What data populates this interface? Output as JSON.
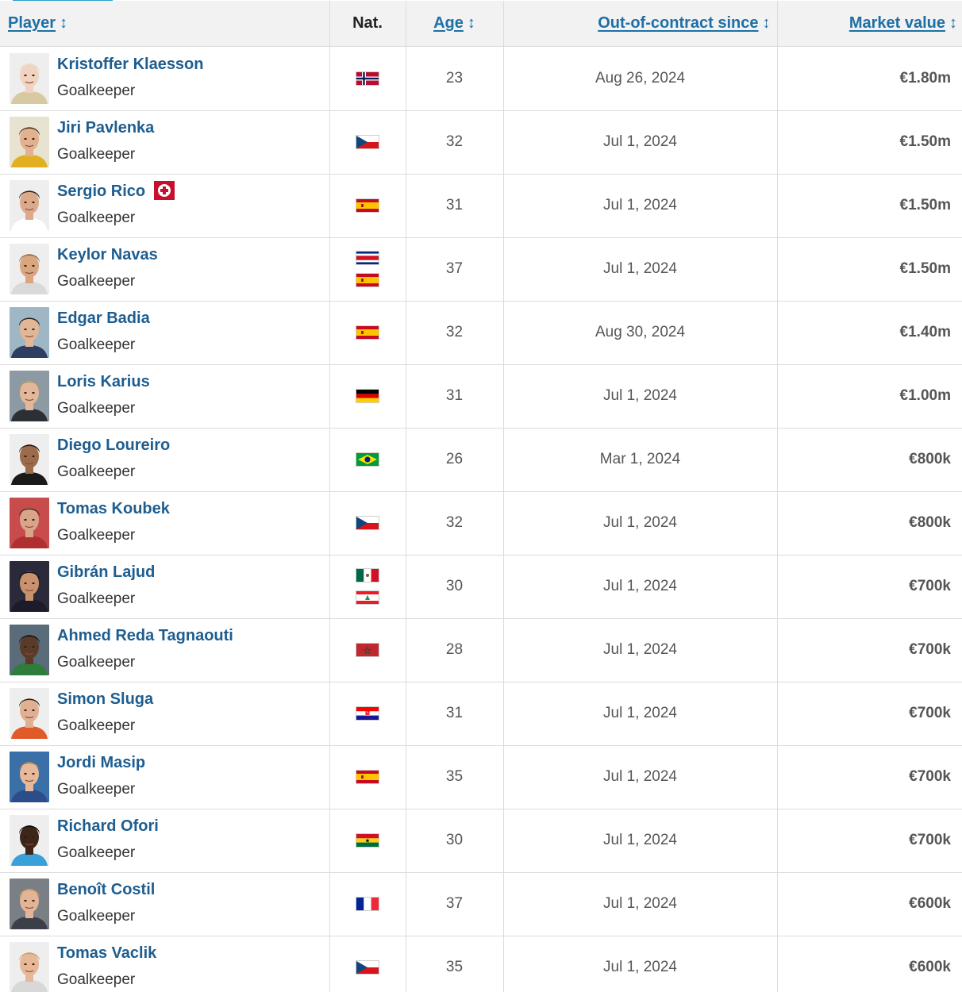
{
  "header": {
    "player": "Player",
    "nat": "Nat.",
    "age": "Age",
    "since": "Out-of-contract since",
    "value": "Market value"
  },
  "colors": {
    "link": "#1d5d90",
    "header_bg": "#f2f2f2",
    "accent": "#2ba0c8",
    "injury": "#c8102e"
  },
  "players": [
    {
      "name": "Kristoffer Klaesson",
      "position": "Goalkeeper",
      "flags": [
        "norway-flag-icon"
      ],
      "age": "23",
      "since": "Aug 26, 2024",
      "value": "€1.80m",
      "injured": false,
      "photo": {
        "skin": "#f1d3c2",
        "hair": "#e9dcc6",
        "bg": "#eeeeee",
        "shirt": "#d7c9a0"
      }
    },
    {
      "name": "Jiri Pavlenka",
      "position": "Goalkeeper",
      "flags": [
        "czech-flag-icon"
      ],
      "age": "32",
      "since": "Jul 1, 2024",
      "value": "€1.50m",
      "injured": false,
      "photo": {
        "skin": "#e3b090",
        "hair": "#4a2e1e",
        "bg": "#e8e2d0",
        "shirt": "#e0b020"
      }
    },
    {
      "name": "Sergio Rico",
      "position": "Goalkeeper",
      "flags": [
        "spain-flag-icon"
      ],
      "age": "31",
      "since": "Jul 1, 2024",
      "value": "€1.50m",
      "injured": true,
      "photo": {
        "skin": "#dcaa8a",
        "hair": "#2b1e16",
        "bg": "#eeeeee",
        "shirt": "#ffffff"
      }
    },
    {
      "name": "Keylor Navas",
      "position": "Goalkeeper",
      "flags": [
        "costa-rica-flag-icon",
        "spain-flag-icon"
      ],
      "age": "37",
      "since": "Jul 1, 2024",
      "value": "€1.50m",
      "injured": false,
      "photo": {
        "skin": "#d8a67f",
        "hair": "#8c6a4c",
        "bg": "#eeeeee",
        "shirt": "#d9d9d9"
      }
    },
    {
      "name": "Edgar Badia",
      "position": "Goalkeeper",
      "flags": [
        "spain-flag-icon"
      ],
      "age": "32",
      "since": "Aug 30, 2024",
      "value": "€1.40m",
      "injured": false,
      "photo": {
        "skin": "#e3b696",
        "hair": "#1e1a18",
        "bg": "#9fb6c4",
        "shirt": "#2d3e62"
      }
    },
    {
      "name": "Loris Karius",
      "position": "Goalkeeper",
      "flags": [
        "germany-flag-icon"
      ],
      "age": "31",
      "since": "Jul 1, 2024",
      "value": "€1.00m",
      "injured": false,
      "photo": {
        "skin": "#e2b899",
        "hair": "#b59468",
        "bg": "#8e9aa3",
        "shirt": "#2d2f36"
      }
    },
    {
      "name": "Diego Loureiro",
      "position": "Goalkeeper",
      "flags": [
        "brazil-flag-icon"
      ],
      "age": "26",
      "since": "Mar 1, 2024",
      "value": "€800k",
      "injured": false,
      "photo": {
        "skin": "#9c6b4c",
        "hair": "#1c1410",
        "bg": "#eeeeee",
        "shirt": "#1a1a1a"
      }
    },
    {
      "name": "Tomas Koubek",
      "position": "Goalkeeper",
      "flags": [
        "czech-flag-icon"
      ],
      "age": "32",
      "since": "Jul 1, 2024",
      "value": "€800k",
      "injured": false,
      "photo": {
        "skin": "#d9a589",
        "hair": "#3a2620",
        "bg": "#c84c4c",
        "shirt": "#b03030"
      }
    },
    {
      "name": "Gibrán Lajud",
      "position": "Goalkeeper",
      "flags": [
        "mexico-flag-icon",
        "lebanon-flag-icon"
      ],
      "age": "30",
      "since": "Jul 1, 2024",
      "value": "€700k",
      "injured": false,
      "photo": {
        "skin": "#c9926c",
        "hair": "#111111",
        "bg": "#2a2a3a",
        "shirt": "#1b1b2b"
      }
    },
    {
      "name": "Ahmed Reda Tagnaouti",
      "position": "Goalkeeper",
      "flags": [
        "morocco-flag-icon"
      ],
      "age": "28",
      "since": "Jul 1, 2024",
      "value": "€700k",
      "injured": false,
      "photo": {
        "skin": "#5b3a28",
        "hair": "#111111",
        "bg": "#5a6b7a",
        "shirt": "#2f7d3c"
      }
    },
    {
      "name": "Simon Sluga",
      "position": "Goalkeeper",
      "flags": [
        "croatia-flag-icon"
      ],
      "age": "31",
      "since": "Jul 1, 2024",
      "value": "€700k",
      "injured": false,
      "photo": {
        "skin": "#e0b092",
        "hair": "#2a1c15",
        "bg": "#eeeeee",
        "shirt": "#e05a2a"
      }
    },
    {
      "name": "Jordi Masip",
      "position": "Goalkeeper",
      "flags": [
        "spain-flag-icon"
      ],
      "age": "35",
      "since": "Jul 1, 2024",
      "value": "€700k",
      "injured": false,
      "photo": {
        "skin": "#e5b999",
        "hair": "#9a7650",
        "bg": "#3a6fa8",
        "shirt": "#2c4d8a"
      }
    },
    {
      "name": "Richard Ofori",
      "position": "Goalkeeper",
      "flags": [
        "ghana-flag-icon"
      ],
      "age": "30",
      "since": "Jul 1, 2024",
      "value": "€700k",
      "injured": false,
      "photo": {
        "skin": "#3d2519",
        "hair": "#0e0a08",
        "bg": "#eeeeee",
        "shirt": "#3aa0d8"
      }
    },
    {
      "name": "Benoît Costil",
      "position": "Goalkeeper",
      "flags": [
        "france-flag-icon"
      ],
      "age": "37",
      "since": "Jul 1, 2024",
      "value": "€600k",
      "injured": false,
      "photo": {
        "skin": "#e3b596",
        "hair": "#c89a5c",
        "bg": "#7a7f86",
        "shirt": "#3a3f48"
      }
    },
    {
      "name": "Tomas Vaclik",
      "position": "Goalkeeper",
      "flags": [
        "czech-flag-icon"
      ],
      "age": "35",
      "since": "Jul 1, 2024",
      "value": "€600k",
      "injured": false,
      "photo": {
        "skin": "#e6b898",
        "hair": "#c8a070",
        "bg": "#eeeeee",
        "shirt": "#d8d8d8"
      }
    }
  ]
}
